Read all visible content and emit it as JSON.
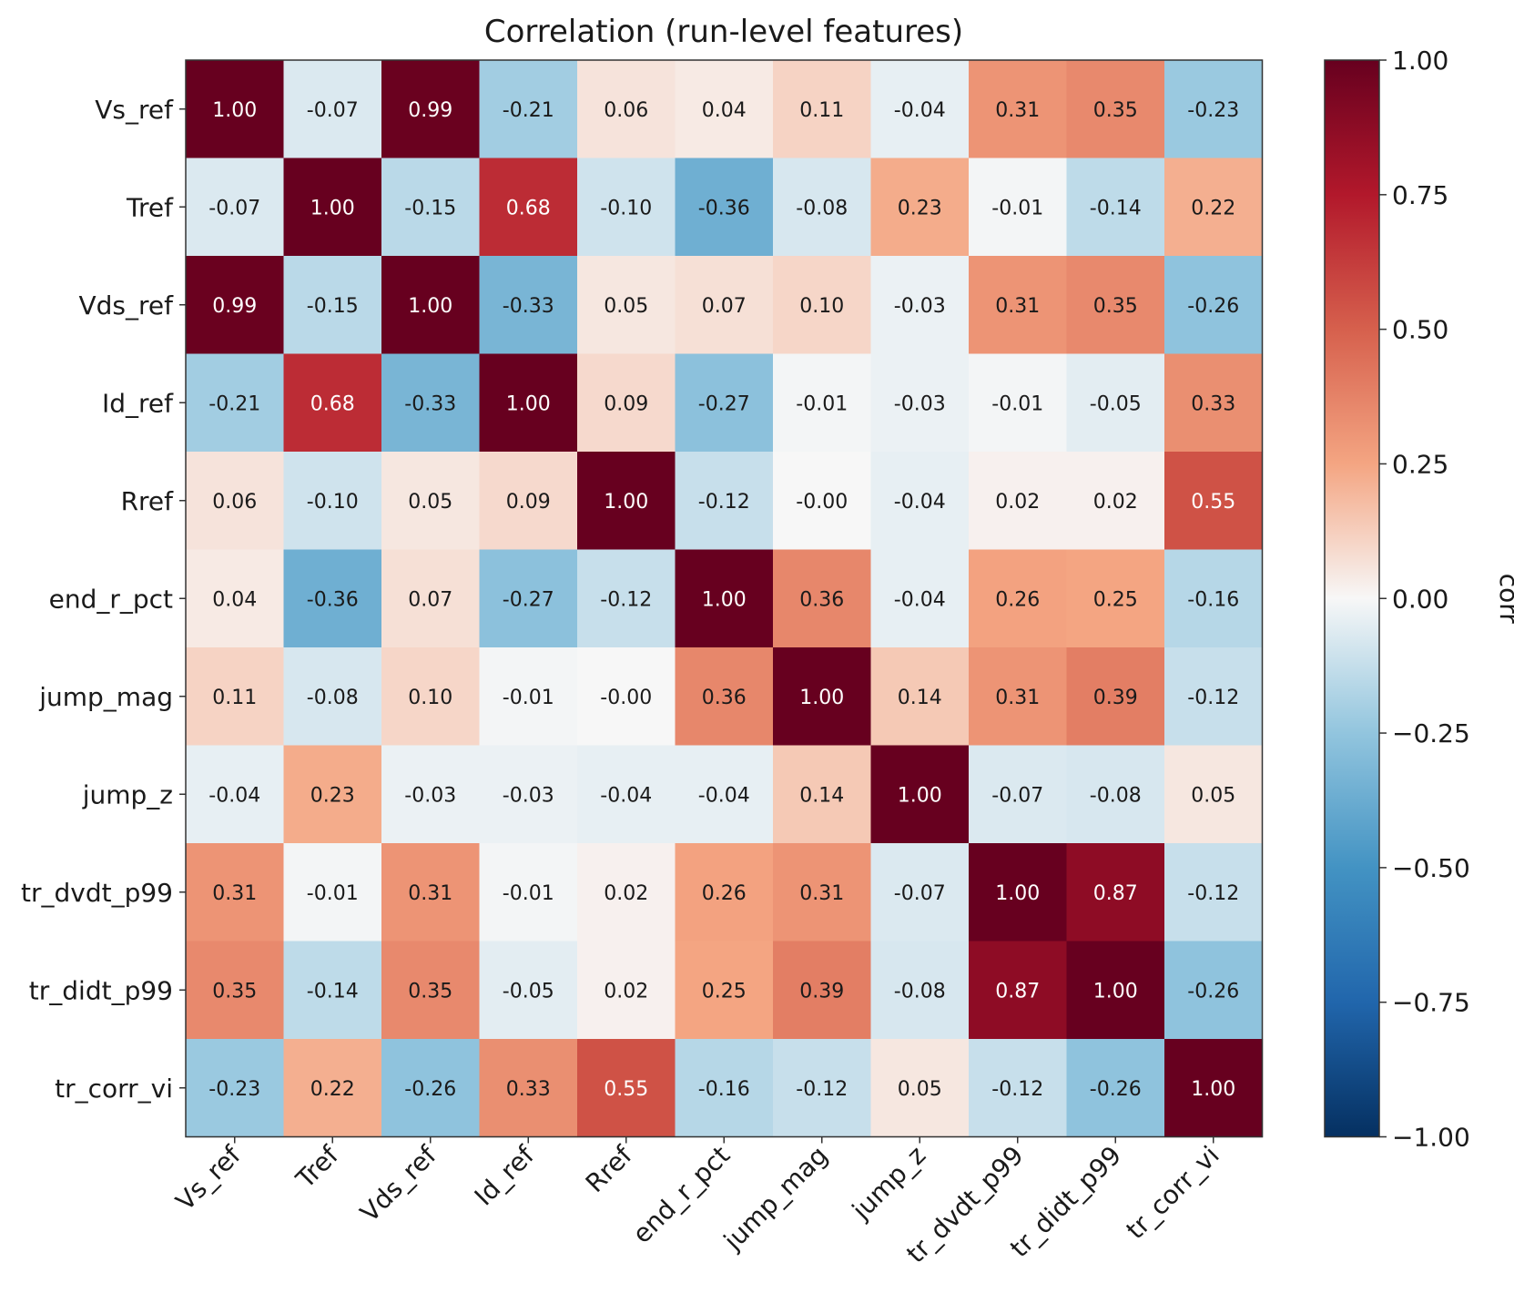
{
  "chart_data": {
    "type": "heatmap",
    "title": "Correlation (run-level features)",
    "rows": [
      "Vs_ref",
      "Tref",
      "Vds_ref",
      "Id_ref",
      "Rref",
      "end_r_pct",
      "jump_mag",
      "jump_z",
      "tr_dvdt_p99",
      "tr_didt_p99",
      "tr_corr_vi"
    ],
    "columns": [
      "Vs_ref",
      "Tref",
      "Vds_ref",
      "Id_ref",
      "Rref",
      "end_r_pct",
      "jump_mag",
      "jump_z",
      "tr_dvdt_p99",
      "tr_didt_p99",
      "tr_corr_vi"
    ],
    "values": [
      [
        1.0,
        -0.07,
        0.99,
        -0.21,
        0.06,
        0.04,
        0.11,
        -0.04,
        0.31,
        0.35,
        -0.23
      ],
      [
        -0.07,
        1.0,
        -0.15,
        0.68,
        -0.1,
        -0.36,
        -0.08,
        0.23,
        -0.01,
        -0.14,
        0.22
      ],
      [
        0.99,
        -0.15,
        1.0,
        -0.33,
        0.05,
        0.07,
        0.1,
        -0.03,
        0.31,
        0.35,
        -0.26
      ],
      [
        -0.21,
        0.68,
        -0.33,
        1.0,
        0.09,
        -0.27,
        -0.01,
        -0.03,
        -0.01,
        -0.05,
        0.33
      ],
      [
        0.06,
        -0.1,
        0.05,
        0.09,
        1.0,
        -0.12,
        -0.0,
        -0.04,
        0.02,
        0.02,
        0.55
      ],
      [
        0.04,
        -0.36,
        0.07,
        -0.27,
        -0.12,
        1.0,
        0.36,
        -0.04,
        0.26,
        0.25,
        -0.16
      ],
      [
        0.11,
        -0.08,
        0.1,
        -0.01,
        -0.0,
        0.36,
        1.0,
        0.14,
        0.31,
        0.39,
        -0.12
      ],
      [
        -0.04,
        0.23,
        -0.03,
        -0.03,
        -0.04,
        -0.04,
        0.14,
        1.0,
        -0.07,
        -0.08,
        0.05
      ],
      [
        0.31,
        -0.01,
        0.31,
        -0.01,
        0.02,
        0.26,
        0.31,
        -0.07,
        1.0,
        0.87,
        -0.12
      ],
      [
        0.35,
        -0.14,
        0.35,
        -0.05,
        0.02,
        0.25,
        0.39,
        -0.08,
        0.87,
        1.0,
        -0.26
      ],
      [
        -0.23,
        0.22,
        -0.26,
        0.33,
        0.55,
        -0.16,
        -0.12,
        0.05,
        -0.12,
        -0.26,
        1.0
      ]
    ],
    "colormap": "RdBu_r",
    "vmin": -1.0,
    "vmax": 1.0,
    "colorbar": {
      "label": "corr",
      "ticks": [
        1.0,
        0.75,
        0.5,
        0.25,
        0.0,
        -0.25,
        -0.5,
        -0.75,
        -1.0
      ],
      "tick_labels": [
        "1.00",
        "0.75",
        "0.50",
        "0.25",
        "0.00",
        "−0.25",
        "−0.50",
        "−0.75",
        "−1.00"
      ]
    },
    "value_format": "2 decimals",
    "xlabel": "",
    "ylabel": ""
  }
}
